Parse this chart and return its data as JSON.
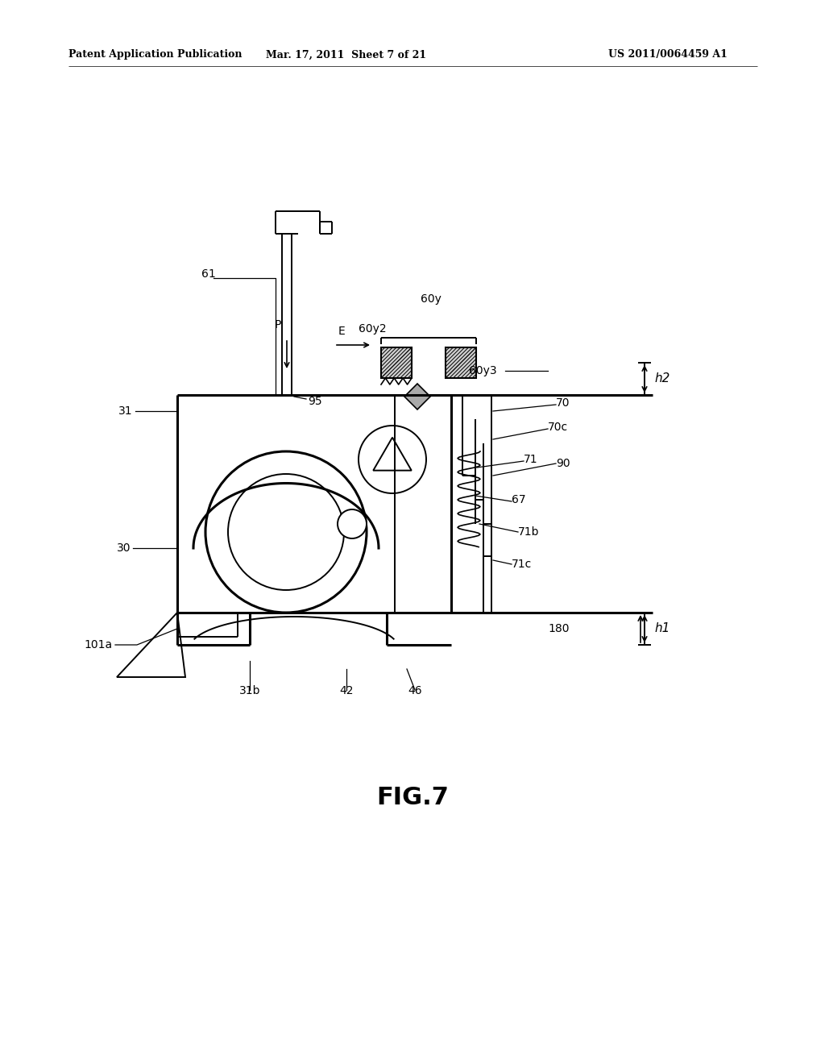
{
  "bg_color": "#ffffff",
  "line_color": "#000000",
  "header_left": "Patent Application Publication",
  "header_center": "Mar. 17, 2011  Sheet 7 of 21",
  "header_right": "US 2011/0064459 A1",
  "fig_caption": "FIG.7",
  "lw": 1.4,
  "lw_thick": 2.2
}
